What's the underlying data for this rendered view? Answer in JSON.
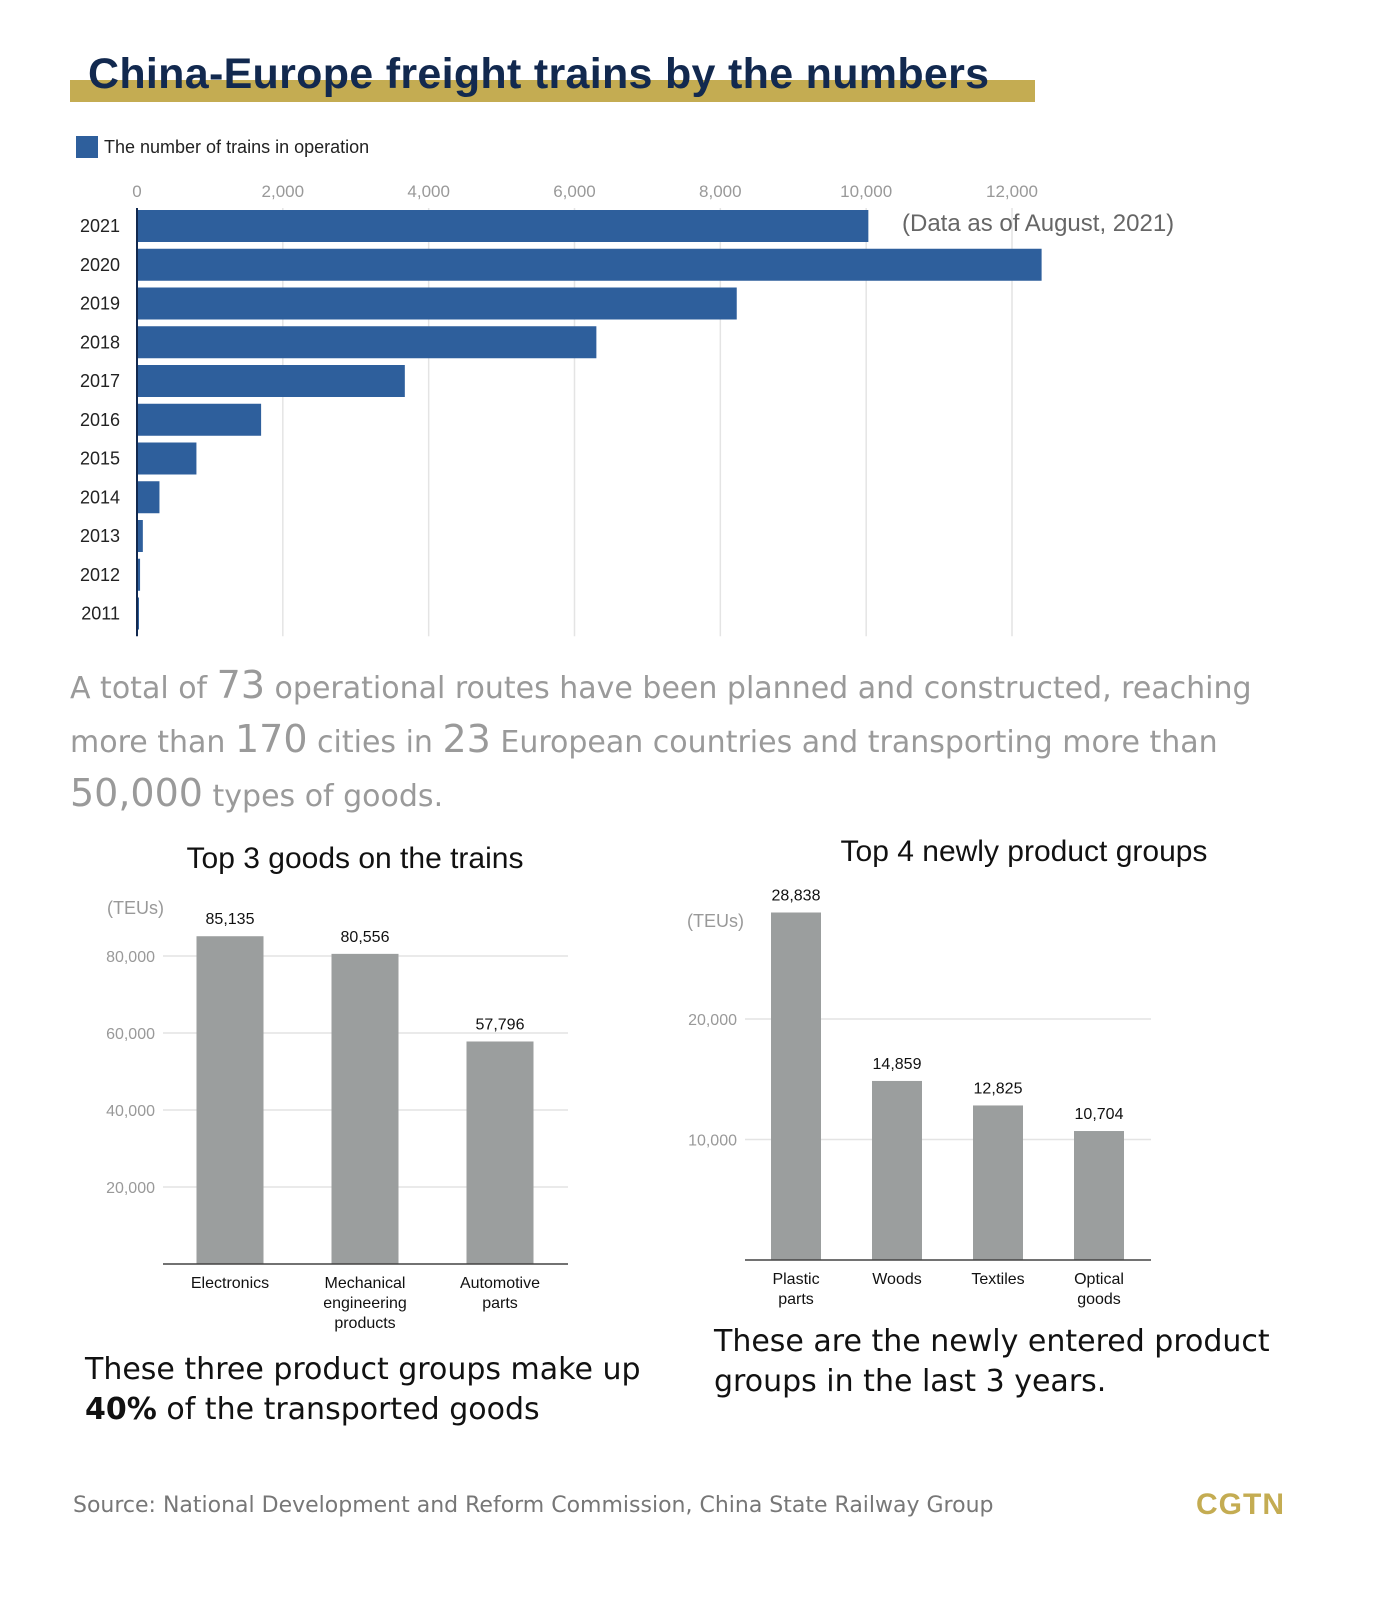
{
  "title": "China-Europe freight trains by the numbers",
  "colors": {
    "accent": "#c4ac52",
    "title": "#12294f",
    "bar_blue": "#2e5f9c",
    "bar_gray": "#9b9e9e"
  },
  "legend": {
    "label": "The number of trains in operation"
  },
  "chart_data": [
    {
      "type": "bar",
      "orientation": "horizontal",
      "title": "The number of trains in operation",
      "categories": [
        "2021",
        "2020",
        "2019",
        "2018",
        "2017",
        "2016",
        "2015",
        "2014",
        "2013",
        "2012",
        "2011"
      ],
      "values": [
        10030,
        12406,
        8225,
        6300,
        3673,
        1702,
        815,
        308,
        80,
        42,
        17
      ],
      "xlim": [
        0,
        12000
      ],
      "ticks": [
        "0",
        "2,000",
        "4,000",
        "6,000",
        "8,000",
        "10,000",
        "12,000"
      ],
      "tick_values": [
        0,
        2000,
        4000,
        6000,
        8000,
        10000,
        12000
      ],
      "annotation": "(Data as of August, 2021)",
      "grid": true
    },
    {
      "type": "bar",
      "title": "Top 3 goods on the trains",
      "ylabel": "(TEUs)",
      "categories": [
        [
          "Electronics"
        ],
        [
          "Mechanical",
          "engineering",
          "products"
        ],
        [
          "Automotive",
          "parts"
        ]
      ],
      "values": [
        85135,
        80556,
        57796
      ],
      "value_labels": [
        "85,135",
        "80,556",
        "57,796"
      ],
      "ylim": [
        0,
        80000
      ],
      "ticks": [
        "20,000",
        "40,000",
        "60,000",
        "80,000"
      ],
      "tick_values": [
        20000,
        40000,
        60000,
        80000
      ],
      "grid": true
    },
    {
      "type": "bar",
      "title": "Top 4 newly product groups",
      "ylabel": "(TEUs)",
      "categories": [
        [
          "Plastic",
          "parts"
        ],
        [
          "Woods"
        ],
        [
          "Textiles"
        ],
        [
          "Optical",
          "goods"
        ]
      ],
      "values": [
        28838,
        14859,
        12825,
        10704
      ],
      "value_labels": [
        "28,838",
        "14,859",
        "12,825",
        "10,704"
      ],
      "ylim": [
        0,
        20000
      ],
      "ticks": [
        "10,000",
        "20,000"
      ],
      "tick_values": [
        10000,
        20000
      ],
      "grid": true
    }
  ],
  "summary": {
    "p1": "A total of ",
    "n1": "73",
    "p2": " operational routes have been planned and constructed, reaching more than ",
    "n2": "170",
    "p3": " cities in ",
    "n3": "23",
    "p4": " European countries and transporting more than ",
    "n4": "50,000",
    "p5": " types of goods."
  },
  "note_left": {
    "line1": "These three product groups make up",
    "bold": "40%",
    "rest": " of the transported goods"
  },
  "note_right": {
    "line1": "These are the newly entered product",
    "line2": "groups in the last 3 years."
  },
  "source": "Source: National Development and Reform Commission, China State Railway Group",
  "logo": "CGTN"
}
